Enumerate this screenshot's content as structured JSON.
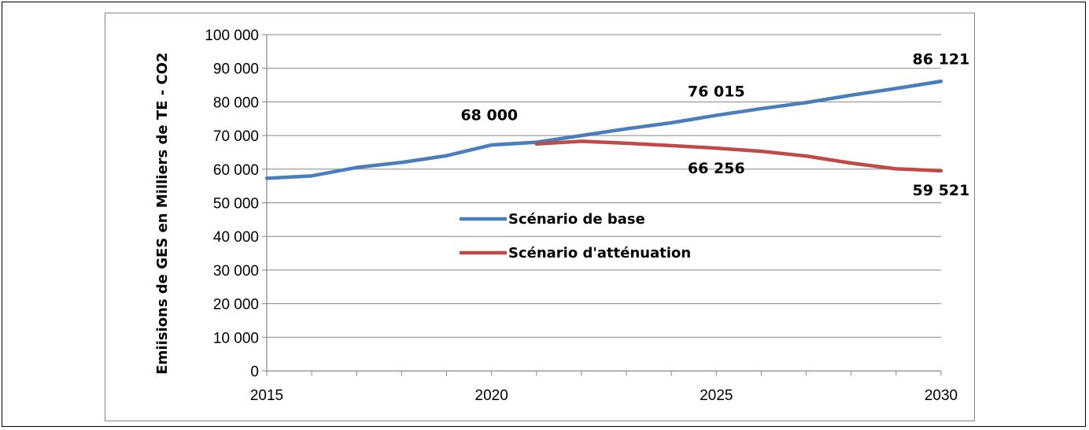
{
  "chart_data": {
    "type": "line",
    "ylabel": "Emiisions de GES en Milliers de TE - CO2",
    "xlabel": "",
    "ylim": [
      0,
      100000
    ],
    "xlim": [
      2015,
      2030
    ],
    "grid": true,
    "legend_placement": "center",
    "y_ticks": [
      0,
      10000,
      20000,
      30000,
      40000,
      50000,
      60000,
      70000,
      80000,
      90000,
      100000
    ],
    "y_tick_labels": [
      "0",
      "10 000",
      "20 000",
      "30 000",
      "40 000",
      "50 000",
      "60 000",
      "70 000",
      "80 000",
      "90 000",
      "100 000"
    ],
    "x_ticks": [
      2015,
      2020,
      2025,
      2030
    ],
    "x_tick_labels": [
      "2015",
      "2020",
      "2025",
      "2030"
    ],
    "series": [
      {
        "name": "Scénario de base",
        "color": "#4a7ebb",
        "x": [
          2015,
          2016,
          2017,
          2018,
          2019,
          2020,
          2021,
          2022,
          2023,
          2024,
          2025,
          2026,
          2027,
          2028,
          2029,
          2030
        ],
        "values": [
          57300,
          58000,
          60500,
          62000,
          64000,
          67200,
          68000,
          70000,
          72000,
          73800,
          76015,
          78000,
          79800,
          82000,
          84000,
          86121
        ]
      },
      {
        "name": "Scénario d'atténuation",
        "color": "#be4b48",
        "x": [
          2021,
          2022,
          2023,
          2024,
          2025,
          2026,
          2027,
          2028,
          2029,
          2030
        ],
        "values": [
          67500,
          68300,
          67700,
          67000,
          66256,
          65300,
          63900,
          61800,
          60100,
          59521
        ]
      }
    ],
    "data_labels": [
      {
        "x": 2021,
        "y": 68000,
        "text": "68 000"
      },
      {
        "x": 2025,
        "y": 76015,
        "text": "76 015"
      },
      {
        "x": 2030,
        "y": 86121,
        "text": "86 121"
      },
      {
        "x": 2025,
        "y": 66256,
        "text": "66 256"
      },
      {
        "x": 2030,
        "y": 59521,
        "text": "59 521"
      }
    ]
  }
}
